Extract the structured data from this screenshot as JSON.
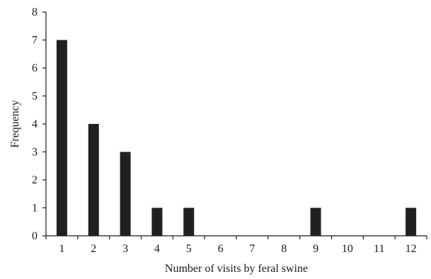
{
  "chart_data": {
    "type": "bar",
    "title": "",
    "xlabel": "Number of visits by feral swine",
    "ylabel": "Frequency",
    "categories": [
      "1",
      "2",
      "3",
      "4",
      "5",
      "6",
      "7",
      "8",
      "9",
      "10",
      "11",
      "12"
    ],
    "values": [
      7,
      4,
      3,
      1,
      1,
      0,
      0,
      0,
      1,
      0,
      0,
      1
    ],
    "ylim": [
      0,
      8
    ],
    "yticks": [
      0,
      1,
      2,
      3,
      4,
      5,
      6,
      7,
      8
    ],
    "grid": false,
    "legend": "none",
    "bar_color": "#231f20"
  }
}
